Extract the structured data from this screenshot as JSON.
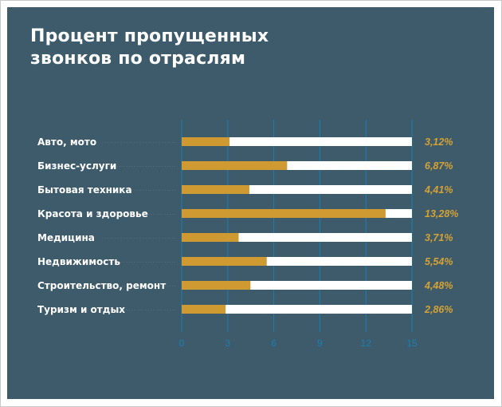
{
  "title_line1": "Процент пропущенных",
  "title_line2": "звонков по отраслям",
  "colors": {
    "background": "#3d5b6b",
    "bar": "#d09a32",
    "track": "#ffffff",
    "value_text": "#d4a235",
    "grid": "#1b7fb0"
  },
  "chart_data": {
    "type": "bar",
    "orientation": "horizontal",
    "title": "Процент пропущенных звонков по отраслям",
    "categories": [
      "Авто, мото",
      "Бизнес-услуги",
      "Бытовая техника",
      "Красота и здоровье",
      "Медицина",
      "Недвижимость",
      "Строительство, ремонт",
      "Туризм и отдых"
    ],
    "values": [
      3.12,
      6.87,
      4.41,
      13.28,
      3.71,
      5.54,
      4.48,
      2.86
    ],
    "value_labels": [
      "3,12%",
      "6,87%",
      "4,41%",
      "13,28%",
      "3,71%",
      "5,54%",
      "4,48%",
      "2,86%"
    ],
    "xlim": [
      0,
      15
    ],
    "xticks": [
      0,
      3,
      6,
      9,
      12,
      15
    ],
    "grid": true,
    "xlabel": "",
    "ylabel": ""
  }
}
